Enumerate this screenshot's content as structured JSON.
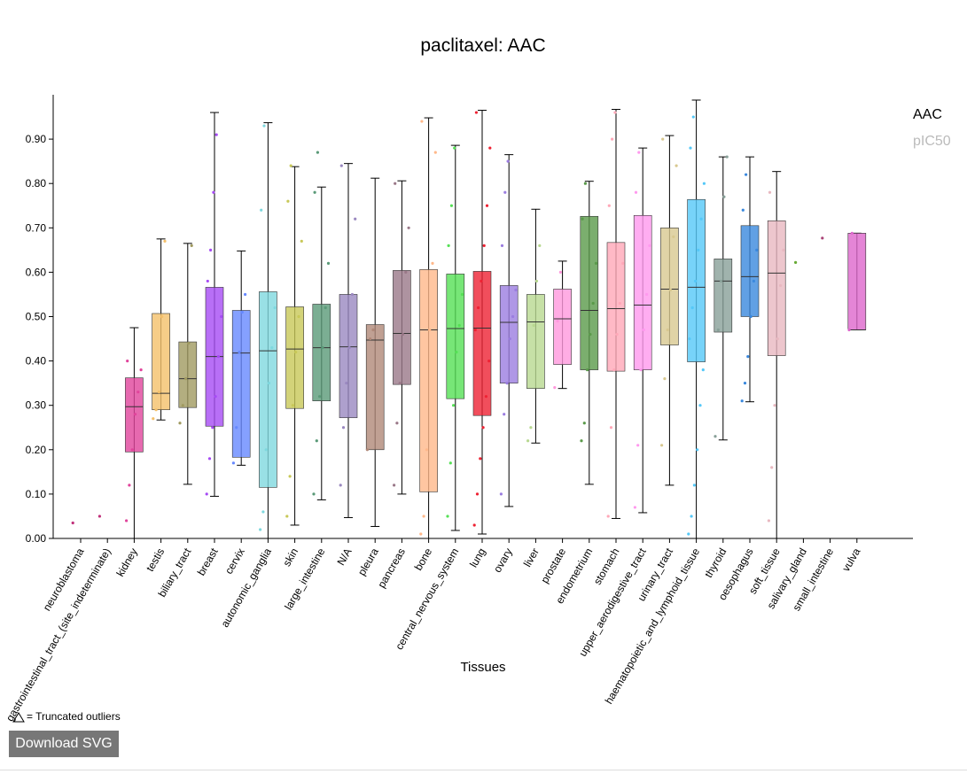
{
  "chart_data": {
    "type": "box",
    "title": "paclitaxel: AAC",
    "x_label": "Tissues",
    "categories": [
      "neuroblastoma",
      "gastrointestinal_tract_(site_indeterminate)",
      "kidney",
      "testis",
      "biliary_tract",
      "breast",
      "cervix",
      "autonomic_ganglia",
      "skin",
      "large_intestine",
      "N/A",
      "pleura",
      "pancreas",
      "bone",
      "central_nervous_system",
      "lung",
      "ovary",
      "liver",
      "prostate",
      "endometrium",
      "stomach",
      "upper_aerodigestive_tract",
      "urinary_tract",
      "haematopoietic_and_lymphoid_tissue",
      "thyroid",
      "oesophagus",
      "soft_tissue",
      "salivary_gland",
      "small_intestine",
      "vulva"
    ],
    "colors": [
      "#c0307a",
      "#c0307a",
      "#e0449b",
      "#f4c06a",
      "#a09a60",
      "#a64bf4",
      "#6688ff",
      "#7fd8de",
      "#c8c858",
      "#5a9a78",
      "#9a88c0",
      "#b08878",
      "#9a7888",
      "#ffb88a",
      "#55e055",
      "#ee2233",
      "#9b7de0",
      "#b8d890",
      "#ff99dd",
      "#5a9a4a",
      "#ffa8b8",
      "#ff99ee",
      "#d8c890",
      "#55c8f8",
      "#88a098",
      "#3a88dd",
      "#e8b8c0",
      "#66aa33",
      "#aa4477",
      "#dd66cc"
    ],
    "boxes": [
      null,
      null,
      {
        "min": 0.0,
        "q1": 0.195,
        "median": 0.297,
        "q3": 0.362,
        "max": 0.475
      },
      {
        "min": 0.267,
        "q1": 0.29,
        "median": 0.327,
        "q3": 0.507,
        "max": 0.675
      },
      {
        "min": 0.122,
        "q1": 0.295,
        "median": 0.36,
        "q3": 0.443,
        "max": 0.665
      },
      {
        "min": 0.095,
        "q1": 0.253,
        "median": 0.41,
        "q3": 0.566,
        "max": 0.96
      },
      {
        "min": 0.165,
        "q1": 0.183,
        "median": 0.418,
        "q3": 0.514,
        "max": 0.648
      },
      {
        "min": 0.0,
        "q1": 0.115,
        "median": 0.423,
        "q3": 0.556,
        "max": 0.937
      },
      {
        "min": 0.03,
        "q1": 0.293,
        "median": 0.427,
        "q3": 0.522,
        "max": 0.838
      },
      {
        "min": 0.087,
        "q1": 0.31,
        "median": 0.43,
        "q3": 0.528,
        "max": 0.792
      },
      {
        "min": 0.047,
        "q1": 0.272,
        "median": 0.432,
        "q3": 0.55,
        "max": 0.845
      },
      {
        "min": 0.027,
        "q1": 0.2,
        "median": 0.447,
        "q3": 0.482,
        "max": 0.812
      },
      {
        "min": 0.1,
        "q1": 0.347,
        "median": 0.462,
        "q3": 0.604,
        "max": 0.806
      },
      {
        "min": 0.0,
        "q1": 0.105,
        "median": 0.47,
        "q3": 0.606,
        "max": 0.948
      },
      {
        "min": 0.018,
        "q1": 0.315,
        "median": 0.473,
        "q3": 0.596,
        "max": 0.886
      },
      {
        "min": 0.01,
        "q1": 0.277,
        "median": 0.474,
        "q3": 0.602,
        "max": 0.965
      },
      {
        "min": 0.072,
        "q1": 0.35,
        "median": 0.487,
        "q3": 0.57,
        "max": 0.865
      },
      {
        "min": 0.215,
        "q1": 0.338,
        "median": 0.488,
        "q3": 0.55,
        "max": 0.742
      },
      {
        "min": 0.338,
        "q1": 0.392,
        "median": 0.495,
        "q3": 0.562,
        "max": 0.625
      },
      {
        "min": 0.122,
        "q1": 0.38,
        "median": 0.514,
        "q3": 0.726,
        "max": 0.805
      },
      {
        "min": 0.045,
        "q1": 0.377,
        "median": 0.518,
        "q3": 0.667,
        "max": 0.967
      },
      {
        "min": 0.058,
        "q1": 0.38,
        "median": 0.526,
        "q3": 0.728,
        "max": 0.88
      },
      {
        "min": 0.12,
        "q1": 0.436,
        "median": 0.562,
        "q3": 0.7,
        "max": 0.908
      },
      {
        "min": 0.0,
        "q1": 0.398,
        "median": 0.566,
        "q3": 0.764,
        "max": 0.988
      },
      {
        "min": 0.222,
        "q1": 0.465,
        "median": 0.58,
        "q3": 0.63,
        "max": 0.86
      },
      {
        "min": 0.308,
        "q1": 0.5,
        "median": 0.59,
        "q3": 0.705,
        "max": 0.86
      },
      {
        "min": 0.0,
        "q1": 0.412,
        "median": 0.598,
        "q3": 0.716,
        "max": 0.827
      },
      null,
      null,
      {
        "min": 0.47,
        "q1": 0.47,
        "median": 0.47,
        "q3": 0.688,
        "max": 0.688
      }
    ],
    "points": [
      [
        0.035
      ],
      [
        0.05
      ],
      [
        0.04,
        0.12,
        0.2,
        0.28,
        0.33,
        0.38,
        0.4
      ],
      [
        0.27,
        0.29,
        0.33,
        0.5,
        0.67
      ],
      [
        0.26,
        0.3,
        0.36,
        0.44,
        0.66
      ],
      [
        0.1,
        0.18,
        0.25,
        0.32,
        0.41,
        0.5,
        0.58,
        0.65,
        0.78,
        0.91
      ],
      [
        0.17,
        0.25,
        0.42,
        0.51,
        0.55
      ],
      [
        0.02,
        0.06,
        0.2,
        0.35,
        0.43,
        0.52,
        0.74,
        0.93
      ],
      [
        0.05,
        0.14,
        0.3,
        0.42,
        0.5,
        0.67,
        0.76,
        0.84
      ],
      [
        0.1,
        0.22,
        0.32,
        0.43,
        0.52,
        0.62,
        0.78,
        0.87
      ],
      [
        0.12,
        0.25,
        0.35,
        0.43,
        0.55,
        0.72,
        0.84
      ],
      [
        0.2,
        0.45,
        0.47
      ],
      [
        0.12,
        0.26,
        0.35,
        0.46,
        0.6,
        0.7,
        0.8
      ],
      [
        0.01,
        0.05,
        0.2,
        0.47,
        0.62,
        0.87,
        0.94
      ],
      [
        0.05,
        0.17,
        0.3,
        0.42,
        0.48,
        0.55,
        0.66,
        0.75,
        0.88
      ],
      [
        0.03,
        0.1,
        0.18,
        0.25,
        0.32,
        0.4,
        0.47,
        0.52,
        0.58,
        0.66,
        0.75,
        0.88,
        0.96
      ],
      [
        0.1,
        0.28,
        0.35,
        0.45,
        0.5,
        0.56,
        0.66,
        0.78,
        0.85
      ],
      [
        0.22,
        0.25,
        0.48,
        0.58,
        0.66
      ],
      [
        0.34,
        0.49,
        0.6
      ],
      [
        0.22,
        0.26,
        0.38,
        0.46,
        0.53,
        0.62,
        0.72,
        0.8
      ],
      [
        0.05,
        0.25,
        0.38,
        0.46,
        0.53,
        0.62,
        0.75,
        0.9,
        0.96
      ],
      [
        0.07,
        0.21,
        0.38,
        0.47,
        0.55,
        0.66,
        0.78,
        0.87
      ],
      [
        0.21,
        0.36,
        0.47,
        0.56,
        0.68,
        0.84,
        0.9
      ],
      [
        0.01,
        0.05,
        0.12,
        0.2,
        0.3,
        0.38,
        0.45,
        0.52,
        0.58,
        0.65,
        0.72,
        0.8,
        0.88,
        0.95
      ],
      [
        0.23,
        0.47,
        0.58,
        0.77,
        0.86
      ],
      [
        0.31,
        0.35,
        0.41,
        0.5,
        0.58,
        0.65,
        0.74,
        0.82
      ],
      [
        0.04,
        0.16,
        0.3,
        0.45,
        0.57,
        0.65,
        0.78
      ],
      [
        0.622
      ],
      [
        0.677
      ],
      [
        0.47,
        0.688
      ]
    ],
    "ylim": [
      0,
      1.0
    ],
    "yticks": [
      {
        "value": 0,
        "label": "0.00"
      },
      {
        "value": 0.1,
        "label": "0.10"
      },
      {
        "value": 0.2,
        "label": "0.20"
      },
      {
        "value": 0.3,
        "label": "0.30"
      },
      {
        "value": 0.4,
        "label": "0.40"
      },
      {
        "value": 0.5,
        "label": "0.50"
      },
      {
        "value": 0.6,
        "label": "0.60"
      },
      {
        "value": 0.7,
        "label": "0.70"
      },
      {
        "value": 0.8,
        "label": "0.80"
      },
      {
        "value": 0.9,
        "label": "0.90"
      }
    ],
    "legend": [
      {
        "name": "AAC",
        "color": "#000000"
      },
      {
        "name": "pIC50",
        "color": "#bbbbbb"
      }
    ],
    "note": "= Truncated outliers",
    "button": "Download SVG"
  }
}
